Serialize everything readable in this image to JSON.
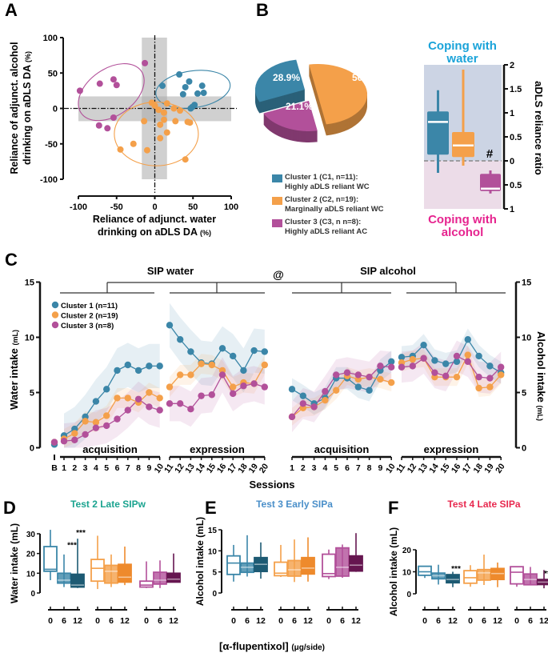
{
  "panel_labels": {
    "A": "A",
    "B": "B",
    "C": "C",
    "D": "D",
    "E": "E",
    "F": "F"
  },
  "colors": {
    "cluster1": "#3b86a8",
    "cluster2": "#f4a04a",
    "cluster3": "#b2509a",
    "cluster1_dark": "#1d5a73",
    "cluster2_dark": "#ee8a2c",
    "cluster3_dark": "#661650",
    "coping_water": "#1aa3d9",
    "coping_alcohol": "#e6248f"
  },
  "chart_data": [
    {
      "panel": "A",
      "type": "scatter",
      "xlabel": [
        "Reliance of adjunct. water",
        "drinking on aDLS DA"
      ],
      "xlabel_unit": "(%)",
      "ylabel": [
        "Reliance of adjunct. alcohol",
        "drinking on aDLS DA"
      ],
      "ylabel_unit": "(%)",
      "xlim": [
        -100,
        100
      ],
      "ylim": [
        -100,
        100
      ],
      "xticks": [
        "-100",
        "-50",
        "0",
        "50",
        "100"
      ],
      "yticks": [
        "100",
        "50",
        "0",
        "-50",
        "-100"
      ],
      "series": [
        {
          "color": "#b2509a",
          "points": [
            [
              -98,
              25
            ],
            [
              -72,
              35
            ],
            [
              -54,
              41
            ],
            [
              -50,
              33
            ],
            [
              -13,
              64
            ],
            [
              -54,
              -13
            ],
            [
              -73,
              -24
            ],
            [
              -62,
              -28
            ]
          ]
        },
        {
          "color": "#3b86a8",
          "points": [
            [
              32,
              48
            ],
            [
              45,
              38
            ],
            [
              10,
              32
            ],
            [
              40,
              30
            ],
            [
              62,
              32
            ],
            [
              37,
              20
            ],
            [
              56,
              21
            ],
            [
              64,
              22
            ],
            [
              52,
              5
            ],
            [
              49,
              2
            ],
            [
              47,
              0
            ]
          ]
        },
        {
          "color": "#f4a04a",
          "points": [
            [
              -4,
              8
            ],
            [
              0,
              4
            ],
            [
              16,
              7
            ],
            [
              5,
              -2
            ],
            [
              12,
              -6
            ],
            [
              25,
              0
            ],
            [
              33,
              -3
            ],
            [
              -14,
              -18
            ],
            [
              7,
              -23
            ],
            [
              12,
              -16
            ],
            [
              27,
              -18
            ],
            [
              43,
              -19
            ],
            [
              46,
              -20
            ],
            [
              16,
              -34
            ],
            [
              7,
              -42
            ],
            [
              -28,
              -50
            ],
            [
              -45,
              -58
            ],
            [
              -10,
              -59
            ],
            [
              40,
              -72
            ]
          ]
        }
      ]
    },
    {
      "panel": "B-pie",
      "type": "pie",
      "slices": [
        {
          "label": "28.9%",
          "value": 28.9,
          "color": "#3b86a8"
        },
        {
          "label": "50%",
          "value": 50,
          "color": "#f4a04a"
        },
        {
          "label": "21.1%",
          "value": 21.1,
          "color": "#b2509a"
        }
      ],
      "legend": [
        {
          "line1": "Cluster 1 (C1, n=11):",
          "line2": "Highly aDLS reliant WC",
          "color": "#3b86a8"
        },
        {
          "line1": "Cluster 2 (C2, n=19):",
          "line2": "Marginally aDLS reliant WC",
          "color": "#f4a04a"
        },
        {
          "line1": "Cluster 3 (C3, n n=8):",
          "line2": "Highly aDLS reliant AC",
          "color": "#b2509a"
        }
      ]
    },
    {
      "panel": "B-box",
      "type": "box",
      "ylabel": "aDLS reliance ratio",
      "top_label": [
        "Coping with",
        "water"
      ],
      "bottom_label": [
        "Coping with",
        "alcohol"
      ],
      "ylim": [
        -1,
        2
      ],
      "yticks": [
        {
          "v": 2,
          "t": "2"
        },
        {
          "v": 1.5,
          "t": "1.5"
        },
        {
          "v": 1,
          "t": "1"
        },
        {
          "v": 0.5,
          "t": "0.5"
        },
        {
          "v": 0,
          "t": "0"
        },
        {
          "v": -0.5,
          "t": "0.5"
        },
        {
          "v": -1,
          "t": "1"
        }
      ],
      "boxes": [
        {
          "color": "#3b86a8",
          "whisker": [
            -0.25,
            1.47
          ],
          "q": [
            0.13,
            1.03
          ],
          "median": 0.81
        },
        {
          "color": "#f4a04a",
          "whisker": [
            -0.1,
            1.9
          ],
          "q": [
            0.08,
            0.6
          ],
          "median": 0.32
        },
        {
          "color": "#b2509a",
          "whisker": [
            -0.68,
            -0.2
          ],
          "q": [
            -0.63,
            -0.27
          ],
          "median": -0.58
        }
      ],
      "annotation": "#"
    },
    {
      "panel": "C",
      "type": "line",
      "title_left": "SIP water",
      "title_mid": "@",
      "title_right": "SIP alcohol",
      "ylabel_left": "Water intake",
      "ylabel_right": "Alcohol intake",
      "yunit": "(mL)",
      "xlabel": "Sessions",
      "phase_labels": [
        "acquisition",
        "expression",
        "acquisition",
        "expression"
      ],
      "ylim": [
        0,
        15
      ],
      "yticks": [
        "0",
        "5",
        "10",
        "15"
      ],
      "water_sessions": [
        "B",
        "1",
        "2",
        "3",
        "4",
        "5",
        "6",
        "7",
        "8",
        "9",
        "10",
        "11",
        "12",
        "13",
        "14",
        "15",
        "16",
        "17",
        "18",
        "19",
        "20"
      ],
      "alcohol_sessions": [
        "1",
        "2",
        "3",
        "4",
        "5",
        "6",
        "7",
        "8",
        "9",
        "10",
        "11",
        "12",
        "13",
        "14",
        "15",
        "16",
        "17",
        "18",
        "19",
        "20"
      ],
      "series": [
        {
          "name": "Cluster 1 (n=11)",
          "color": "#3b86a8",
          "water": [
            0.3,
            1.1,
            1.7,
            2.8,
            4.2,
            5.3,
            7.0,
            7.5,
            7.0,
            7.4,
            7.4,
            11.1,
            9.8,
            8.7,
            7.7,
            7.6,
            9.0,
            8.3,
            7.0,
            8.8,
            8.7
          ],
          "water_band": 2.0,
          "alcohol": [
            5.3,
            4.7,
            4.0,
            4.5,
            6.3,
            6.3,
            5.5,
            5.2,
            7.0,
            7.8,
            8.2,
            8.3,
            9.3,
            7.9,
            7.6,
            7.8,
            9.8,
            8.3,
            7.4,
            6.8
          ],
          "alcohol_band": 1.0
        },
        {
          "name": "Cluster 2 (n=19)",
          "color": "#f4a04a",
          "water": [
            0.5,
            0.8,
            1.3,
            2.4,
            2.3,
            2.9,
            4.5,
            4.5,
            4.1,
            5.0,
            4.5,
            5.5,
            6.6,
            6.6,
            7.6,
            7.5,
            7.0,
            5.5,
            5.9,
            5.8,
            7.5
          ],
          "water_band": 0.9,
          "alcohol": [
            2.8,
            3.6,
            3.7,
            4.3,
            5.2,
            6.5,
            6.2,
            6.4,
            6.2,
            5.9,
            7.7,
            8.0,
            8.1,
            6.4,
            6.4,
            6.4,
            8.4,
            5.4,
            5.5,
            6.6
          ],
          "alcohol_band": 0.8
        },
        {
          "name": "Cluster 3 (n=8)",
          "color": "#b2509a",
          "water": [
            0.5,
            0.6,
            0.7,
            1.2,
            1.8,
            2.0,
            2.6,
            3.4,
            4.4,
            3.7,
            3.4,
            4.0,
            4.0,
            3.5,
            4.7,
            4.8,
            6.6,
            4.9,
            5.6,
            5.8,
            5.5
          ],
          "water_band": 1.6,
          "alcohol": [
            2.8,
            4.0,
            3.7,
            5.1,
            6.6,
            6.8,
            6.6,
            6.4,
            7.4,
            7.3,
            7.3,
            7.4,
            8.1,
            6.8,
            6.5,
            8.3,
            7.8,
            6.4,
            6.3,
            7.3
          ],
          "alcohol_band": 1.4
        }
      ]
    },
    {
      "panel": "D",
      "type": "box",
      "title": "Test 2 Late SIPw",
      "title_color": "#1aa38f",
      "ylabel": "Water intake (mL)",
      "ylim": [
        0,
        30
      ],
      "yticks": [
        "0",
        "10",
        "20",
        "30"
      ],
      "doses": [
        "0",
        "6",
        "12"
      ],
      "groups": [
        {
          "color": "#3b86a8",
          "dark": "#1d5a73",
          "boxes": [
            {
              "whisker": [
                6.5,
                32
              ],
              "q": [
                11,
                23.5
              ],
              "median": 12
            },
            {
              "whisker": [
                3,
                19.5
              ],
              "q": [
                5,
                10
              ],
              "median": 6.5,
              "star": "***"
            },
            {
              "whisker": [
                2.5,
                27.5
              ],
              "q": [
                3,
                9.5
              ],
              "median": 4,
              "star": "***"
            }
          ]
        },
        {
          "color": "#f4a04a",
          "dark": "#ee8a2c",
          "boxes": [
            {
              "whisker": [
                2,
                29
              ],
              "q": [
                6,
                17
              ],
              "median": 12.5
            },
            {
              "whisker": [
                3,
                19.5
              ],
              "q": [
                5,
                14
              ],
              "median": 11
            },
            {
              "whisker": [
                4,
                23.5
              ],
              "q": [
                5.5,
                14.5
              ],
              "median": 8
            }
          ]
        },
        {
          "color": "#b2509a",
          "dark": "#661650",
          "boxes": [
            {
              "whisker": [
                2.5,
                16
              ],
              "q": [
                3,
                6
              ],
              "median": 4
            },
            {
              "whisker": [
                2.5,
                16.5
              ],
              "q": [
                4.5,
                10.5
              ],
              "median": 6.5
            },
            {
              "whisker": [
                5.5,
                20
              ],
              "q": [
                5.5,
                10
              ],
              "median": 7
            }
          ]
        }
      ]
    },
    {
      "panel": "E",
      "type": "box",
      "title": "Test 3 Early SIPa",
      "title_color": "#4a8fc9",
      "ylabel": "Alcohol intake (mL)",
      "ylim": [
        0,
        15
      ],
      "yticks": [
        "0",
        "5",
        "10",
        "15"
      ],
      "doses": [
        "0",
        "6",
        "12"
      ],
      "groups": [
        {
          "color": "#3b86a8",
          "dark": "#1d5a73",
          "boxes": [
            {
              "whisker": [
                2.7,
                11.4
              ],
              "q": [
                4.4,
                8.8
              ],
              "median": 7.1
            },
            {
              "whisker": [
                3.9,
                13.7
              ],
              "q": [
                4.9,
                7.1
              ],
              "median": 6.1
            },
            {
              "whisker": [
                3.4,
                12
              ],
              "q": [
                5.1,
                8.4
              ],
              "median": 6.8
            }
          ]
        },
        {
          "color": "#f4a04a",
          "dark": "#ee8a2c",
          "boxes": [
            {
              "whisker": [
                3.8,
                11.4
              ],
              "q": [
                4.1,
                7.3
              ],
              "median": 4.7
            },
            {
              "whisker": [
                2.6,
                12.7
              ],
              "q": [
                4,
                7.7
              ],
              "median": 5.5
            },
            {
              "whisker": [
                2.7,
                13.2
              ],
              "q": [
                4.5,
                8.4
              ],
              "median": 5.9
            }
          ]
        },
        {
          "color": "#b2509a",
          "dark": "#661650",
          "boxes": [
            {
              "whisker": [
                3.3,
                10.3
              ],
              "q": [
                3.9,
                9.2
              ],
              "median": 4.6
            },
            {
              "whisker": [
                3.6,
                11.5
              ],
              "q": [
                4,
                10.7
              ],
              "median": 6.1
            },
            {
              "whisker": [
                5,
                14.2
              ],
              "q": [
                5.2,
                8.8
              ],
              "median": 6.6
            }
          ]
        }
      ]
    },
    {
      "panel": "F",
      "type": "box",
      "title": "Test 4 Late SIPa",
      "title_color": "#e8294f",
      "ylabel": "Alcohol intake (mL)",
      "ylim": [
        0,
        20
      ],
      "yticks": [
        "0",
        "10",
        "20"
      ],
      "doses": [
        "0",
        "6",
        "12"
      ],
      "groups": [
        {
          "color": "#3b86a8",
          "dark": "#1d5a73",
          "boxes": [
            {
              "whisker": [
                7.2,
                12.7
              ],
              "q": [
                8.4,
                12.5
              ],
              "median": 10
            },
            {
              "whisker": [
                4.2,
                13.2
              ],
              "q": [
                6.8,
                9.4
              ],
              "median": 8.2
            },
            {
              "whisker": [
                3,
                10
              ],
              "q": [
                5,
                8.7
              ],
              "median": 6.5,
              "star": "***"
            }
          ]
        },
        {
          "color": "#f4a04a",
          "dark": "#ee8a2c",
          "boxes": [
            {
              "whisker": [
                3.2,
                13
              ],
              "q": [
                4.8,
                10.5
              ],
              "median": 7.3
            },
            {
              "whisker": [
                4,
                17.8
              ],
              "q": [
                6.2,
                11
              ],
              "median": 9.5
            },
            {
              "whisker": [
                3,
                14.2
              ],
              "q": [
                6.5,
                11.5
              ],
              "median": 9.2
            }
          ]
        },
        {
          "color": "#b2509a",
          "dark": "#661650",
          "boxes": [
            {
              "whisker": [
                3.2,
                12.5
              ],
              "q": [
                4.5,
                12.3
              ],
              "median": 9.8
            },
            {
              "whisker": [
                4,
                12.2
              ],
              "q": [
                4.1,
                9
              ],
              "median": 6.5
            },
            {
              "whisker": [
                2.5,
                10.8
              ],
              "q": [
                4.2,
                6.5
              ],
              "median": 5.3,
              "star": "**"
            }
          ]
        }
      ]
    }
  ],
  "shared_xlabel": {
    "text": "[α-flupentixol]",
    "unit": "(μg/side)"
  }
}
